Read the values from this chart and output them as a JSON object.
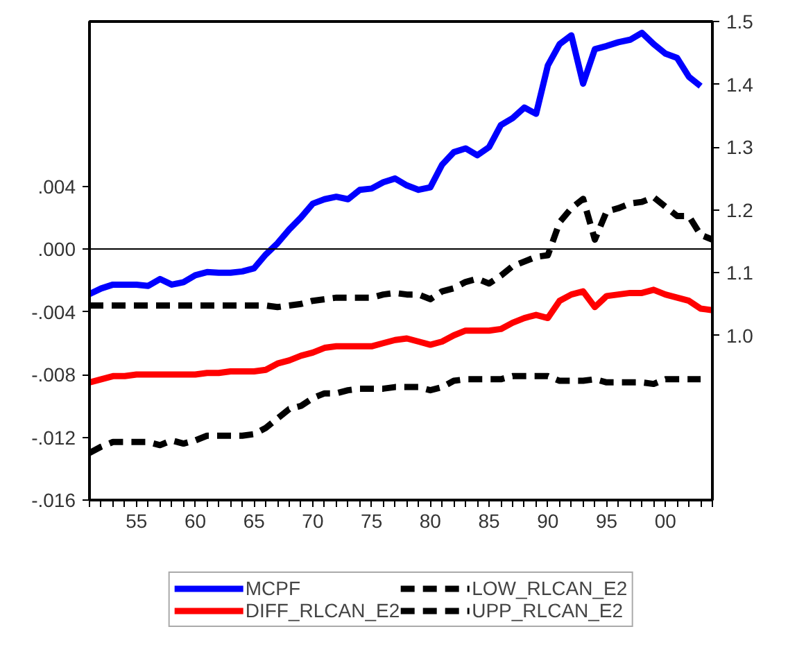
{
  "chart_data": {
    "type": "line",
    "x": [
      1951,
      1952,
      1953,
      1954,
      1955,
      1956,
      1957,
      1958,
      1959,
      1960,
      1961,
      1962,
      1963,
      1964,
      1965,
      1966,
      1967,
      1968,
      1969,
      1970,
      1971,
      1972,
      1973,
      1974,
      1975,
      1976,
      1977,
      1978,
      1979,
      1980,
      1981,
      1982,
      1983,
      1984,
      1985,
      1986,
      1987,
      1988,
      1989,
      1990,
      1991,
      1992,
      1993,
      1994,
      1995,
      1996,
      1997,
      1998,
      1999,
      2000,
      2001,
      2002,
      2003,
      2004
    ],
    "series": [
      {
        "name": "MCPF",
        "color": "#0000ff",
        "axis": "y2",
        "line_style": "solid",
        "values": [
          1.066,
          1.075,
          1.081,
          1.081,
          1.081,
          1.079,
          1.09,
          1.081,
          1.085,
          1.096,
          1.101,
          1.1,
          1.1,
          1.102,
          1.107,
          1.129,
          1.147,
          1.169,
          1.188,
          1.21,
          1.217,
          1.221,
          1.217,
          1.232,
          1.234,
          1.244,
          1.25,
          1.239,
          1.232,
          1.236,
          1.272,
          1.292,
          1.298,
          1.287,
          1.3,
          1.335,
          1.346,
          1.363,
          1.353,
          1.43,
          1.464,
          1.478,
          1.401,
          1.456,
          1.461,
          1.467,
          1.471,
          1.482,
          1.464,
          1.449,
          1.442,
          1.412,
          1.397,
          null
        ]
      },
      {
        "name": "DIFF_RLCAN_E2",
        "color": "#ff0000",
        "line_style": "solid",
        "values": [
          -0.0085,
          -0.0083,
          -0.0081,
          -0.0081,
          -0.008,
          -0.008,
          -0.008,
          -0.008,
          -0.008,
          -0.008,
          -0.0079,
          -0.0079,
          -0.0078,
          -0.0078,
          -0.0078,
          -0.0077,
          -0.0073,
          -0.0071,
          -0.0068,
          -0.0066,
          -0.0063,
          -0.0062,
          -0.0062,
          -0.0062,
          -0.0062,
          -0.006,
          -0.0058,
          -0.0057,
          -0.0059,
          -0.0061,
          -0.0059,
          -0.0055,
          -0.0052,
          -0.0052,
          -0.0052,
          -0.0051,
          -0.0047,
          -0.0044,
          -0.0042,
          -0.0044,
          -0.0033,
          -0.0029,
          -0.0027,
          -0.0037,
          -0.003,
          -0.0029,
          -0.0028,
          -0.0028,
          -0.0026,
          -0.0029,
          -0.0031,
          -0.0033,
          -0.0038,
          -0.0039
        ]
      },
      {
        "name": "LOW_RLCAN_E2",
        "color": "#000000",
        "line_style": "dashed",
        "values": [
          -0.013,
          -0.0126,
          -0.0123,
          -0.0123,
          -0.0123,
          -0.0123,
          -0.0125,
          -0.0122,
          -0.0124,
          -0.0122,
          -0.0119,
          -0.0119,
          -0.0119,
          -0.0119,
          -0.0118,
          -0.0114,
          -0.0108,
          -0.0102,
          -0.01,
          -0.0095,
          -0.0092,
          -0.0092,
          -0.009,
          -0.0089,
          -0.0089,
          -0.0089,
          -0.0088,
          -0.0088,
          -0.0088,
          -0.009,
          -0.0088,
          -0.0084,
          -0.0083,
          -0.0083,
          -0.0083,
          -0.0083,
          -0.0081,
          -0.0081,
          -0.0081,
          -0.0081,
          -0.0084,
          -0.0084,
          -0.0084,
          -0.0083,
          -0.0085,
          -0.0085,
          -0.0085,
          -0.0085,
          -0.0086,
          -0.0083,
          -0.0083,
          -0.0083,
          -0.0083,
          null
        ]
      },
      {
        "name": "UPP_RLCAN_E2",
        "color": "#000000",
        "line_style": "dashed",
        "values": [
          -0.0036,
          -0.0036,
          -0.0036,
          -0.0036,
          -0.0036,
          -0.0036,
          -0.0036,
          -0.0036,
          -0.0036,
          -0.0036,
          -0.0036,
          -0.0036,
          -0.0036,
          -0.0036,
          -0.0036,
          -0.0036,
          -0.0037,
          -0.0036,
          -0.0035,
          -0.0033,
          -0.0032,
          -0.0031,
          -0.0031,
          -0.0031,
          -0.0031,
          -0.0029,
          -0.0028,
          -0.0029,
          -0.0029,
          -0.0032,
          -0.0027,
          -0.0025,
          -0.0021,
          -0.0019,
          -0.0022,
          -0.0017,
          -0.0011,
          -0.0008,
          -0.0005,
          -0.0004,
          0.0017,
          0.0026,
          0.0032,
          0.0006,
          0.0024,
          0.0026,
          0.0029,
          0.003,
          0.0033,
          0.0027,
          0.0021,
          0.0021,
          0.0009,
          0.0006
        ]
      }
    ],
    "xlim": [
      1951,
      2004
    ],
    "xticks": [
      {
        "value": 1951,
        "label": null
      },
      {
        "value": 1952,
        "label": null
      },
      {
        "value": 1953,
        "label": null
      },
      {
        "value": 1954,
        "label": null
      },
      {
        "value": 1955,
        "label": "55"
      },
      {
        "value": 1956,
        "label": null
      },
      {
        "value": 1957,
        "label": null
      },
      {
        "value": 1958,
        "label": null
      },
      {
        "value": 1959,
        "label": null
      },
      {
        "value": 1960,
        "label": "60"
      },
      {
        "value": 1961,
        "label": null
      },
      {
        "value": 1962,
        "label": null
      },
      {
        "value": 1963,
        "label": null
      },
      {
        "value": 1964,
        "label": null
      },
      {
        "value": 1965,
        "label": "65"
      },
      {
        "value": 1966,
        "label": null
      },
      {
        "value": 1967,
        "label": null
      },
      {
        "value": 1968,
        "label": null
      },
      {
        "value": 1969,
        "label": null
      },
      {
        "value": 1970,
        "label": "70"
      },
      {
        "value": 1971,
        "label": null
      },
      {
        "value": 1972,
        "label": null
      },
      {
        "value": 1973,
        "label": null
      },
      {
        "value": 1974,
        "label": null
      },
      {
        "value": 1975,
        "label": "75"
      },
      {
        "value": 1976,
        "label": null
      },
      {
        "value": 1977,
        "label": null
      },
      {
        "value": 1978,
        "label": null
      },
      {
        "value": 1979,
        "label": null
      },
      {
        "value": 1980,
        "label": "80"
      },
      {
        "value": 1981,
        "label": null
      },
      {
        "value": 1982,
        "label": null
      },
      {
        "value": 1983,
        "label": null
      },
      {
        "value": 1984,
        "label": null
      },
      {
        "value": 1985,
        "label": "85"
      },
      {
        "value": 1986,
        "label": null
      },
      {
        "value": 1987,
        "label": null
      },
      {
        "value": 1988,
        "label": null
      },
      {
        "value": 1989,
        "label": null
      },
      {
        "value": 1990,
        "label": "90"
      },
      {
        "value": 1991,
        "label": null
      },
      {
        "value": 1992,
        "label": null
      },
      {
        "value": 1993,
        "label": null
      },
      {
        "value": 1994,
        "label": null
      },
      {
        "value": 1995,
        "label": "95"
      },
      {
        "value": 1996,
        "label": null
      },
      {
        "value": 1997,
        "label": null
      },
      {
        "value": 1998,
        "label": null
      },
      {
        "value": 1999,
        "label": null
      },
      {
        "value": 2000,
        "label": "00"
      },
      {
        "value": 2001,
        "label": null
      },
      {
        "value": 2002,
        "label": null
      },
      {
        "value": 2003,
        "label": null
      },
      {
        "value": 2004,
        "label": null
      }
    ],
    "ylim": [
      -0.016,
      0.0145
    ],
    "yticks": [
      {
        "value": -0.016,
        "label": "-.016"
      },
      {
        "value": -0.012,
        "label": "-.012"
      },
      {
        "value": -0.008,
        "label": "-.008"
      },
      {
        "value": -0.004,
        "label": "-.004"
      },
      {
        "value": 0,
        "label": ".000"
      },
      {
        "value": 0.004,
        "label": ".004"
      }
    ],
    "y2lim": [
      0.738,
      1.5
    ],
    "y2ticks": [
      {
        "value": 1.0,
        "label": "1.0"
      },
      {
        "value": 1.1,
        "label": "1.1"
      },
      {
        "value": 1.2,
        "label": "1.2"
      },
      {
        "value": 1.3,
        "label": "1.3"
      },
      {
        "value": 1.4,
        "label": "1.4"
      },
      {
        "value": 1.5,
        "label": "1.5"
      }
    ],
    "ref_lines": [
      {
        "axis": "y",
        "value": 0,
        "color": "#000000",
        "line_style": "solid"
      }
    ],
    "grid": false,
    "legend": "bottom"
  }
}
